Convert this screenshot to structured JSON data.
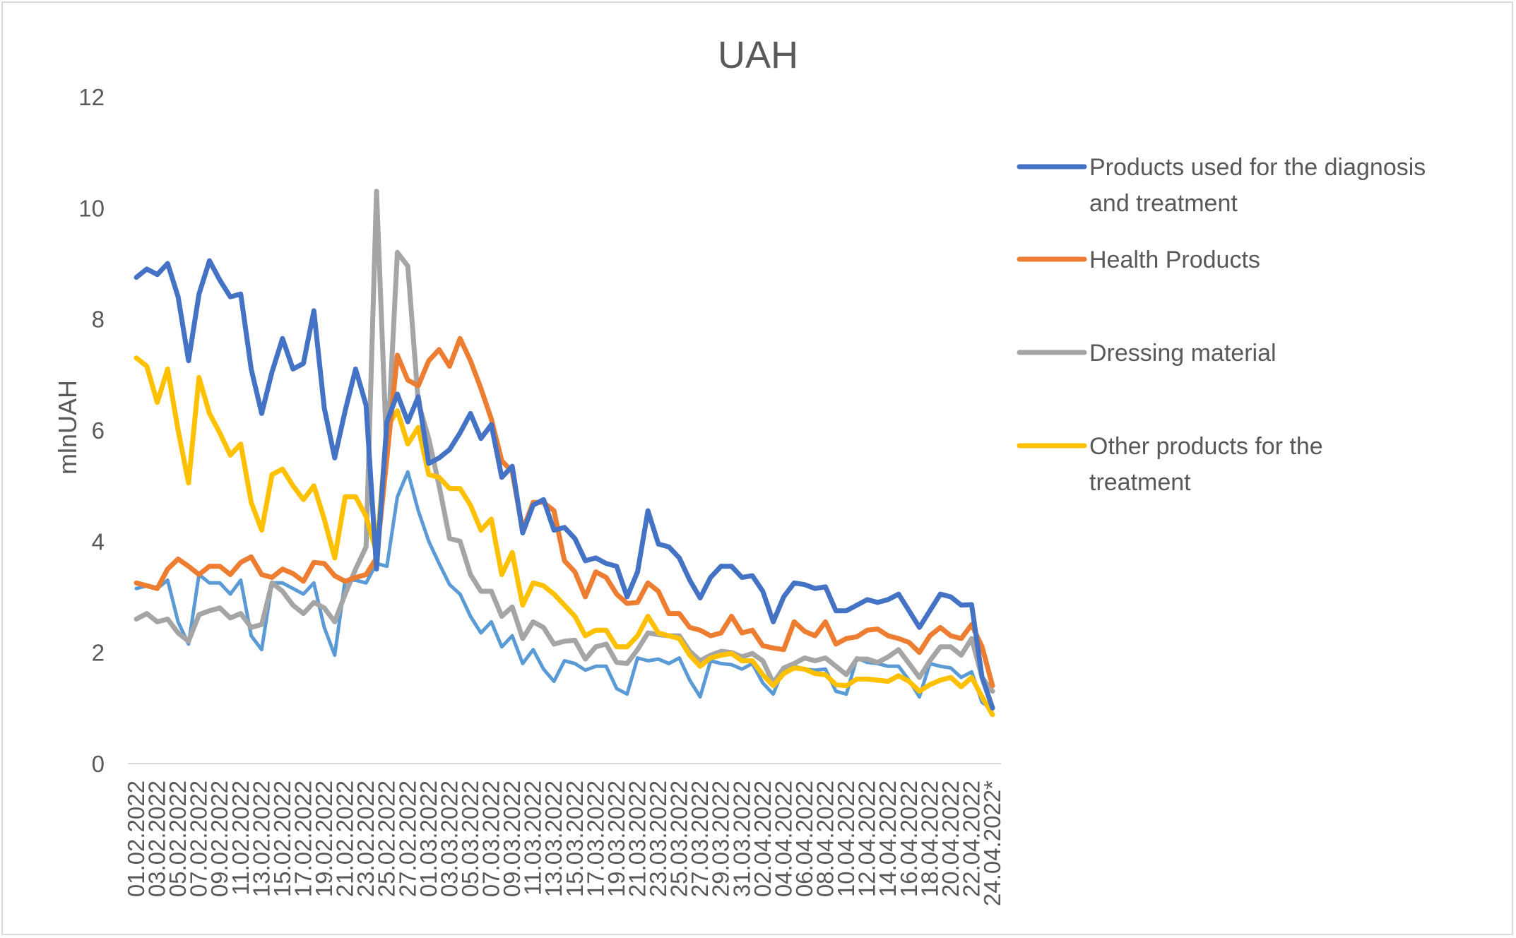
{
  "chart_data": {
    "type": "line",
    "title": "UAH",
    "xlabel": "",
    "ylabel": "mlnUAH",
    "ylim": [
      0,
      12
    ],
    "yticks": [
      "0",
      "2",
      "4",
      "6",
      "8",
      "10",
      "12"
    ],
    "grid": false,
    "legend_position": "right",
    "x_tick_labels": [
      "01.02.2022",
      "03.02.2022",
      "05.02.2022",
      "07.02.2022",
      "09.02.2022",
      "11.02.2022",
      "13.02.2022",
      "15.02.2022",
      "17.02.2022",
      "19.02.2022",
      "21.02.2022",
      "23.02.2022",
      "25.02.2022",
      "27.02.2022",
      "01.03.2022",
      "03.03.2022",
      "05.03.2022",
      "07.03.2022",
      "09.03.2022",
      "11.03.2022",
      "13.03.2022",
      "15.03.2022",
      "17.03.2022",
      "19.03.2022",
      "21.03.2022",
      "23.03.2022",
      "25.03.2022",
      "27.03.2022",
      "29.03.2022",
      "31.03.2022",
      "02.04.2022",
      "04.04.2022",
      "06.04.2022",
      "08.04.2022",
      "10.04.2022",
      "12.04.2022",
      "14.04.2022",
      "16.04.2022",
      "18.04.2022",
      "20.04.2022",
      "22.04.2022",
      "24.04.2022*"
    ],
    "series": [
      {
        "name": "Products used for the diagnosis and treatment",
        "color": "#4472C4",
        "in_legend": true,
        "values": [
          8.75,
          8.9,
          8.8,
          9.0,
          8.4,
          7.25,
          8.45,
          9.05,
          8.7,
          8.4,
          8.45,
          7.1,
          6.3,
          7.05,
          7.65,
          7.1,
          7.2,
          8.15,
          6.4,
          5.5,
          6.35,
          7.1,
          6.45,
          3.5,
          6.15,
          6.65,
          6.15,
          6.6,
          5.4,
          5.5,
          5.65,
          5.95,
          6.3,
          5.85,
          6.1,
          5.15,
          5.35,
          4.15,
          4.65,
          4.75,
          4.2,
          4.25,
          4.05,
          3.65,
          3.7,
          3.6,
          3.55,
          3.0,
          3.45,
          4.55,
          3.95,
          3.9,
          3.7,
          3.3,
          2.98,
          3.35,
          3.55,
          3.55,
          3.35,
          3.38,
          3.1,
          2.55,
          3.0,
          3.25,
          3.22,
          3.15,
          3.18,
          2.75,
          2.75,
          2.85,
          2.95,
          2.9,
          2.95,
          3.05,
          2.75,
          2.45,
          2.75,
          3.05,
          3.0,
          2.85,
          2.86,
          1.55,
          1.0
        ]
      },
      {
        "name": "Health Products",
        "color": "#ED7D31",
        "in_legend": true,
        "values": [
          3.25,
          3.2,
          3.15,
          3.5,
          3.68,
          3.55,
          3.4,
          3.55,
          3.55,
          3.4,
          3.62,
          3.72,
          3.4,
          3.35,
          3.5,
          3.42,
          3.28,
          3.62,
          3.6,
          3.38,
          3.28,
          3.35,
          3.4,
          3.7,
          5.5,
          7.35,
          6.9,
          6.8,
          7.25,
          7.45,
          7.15,
          7.65,
          7.25,
          6.75,
          6.2,
          5.45,
          5.25,
          4.2,
          4.7,
          4.7,
          4.55,
          3.65,
          3.45,
          3.0,
          3.45,
          3.35,
          3.05,
          2.88,
          2.9,
          3.25,
          3.1,
          2.7,
          2.7,
          2.45,
          2.4,
          2.3,
          2.35,
          2.65,
          2.35,
          2.4,
          2.12,
          2.08,
          2.05,
          2.55,
          2.38,
          2.3,
          2.55,
          2.15,
          2.25,
          2.28,
          2.4,
          2.42,
          2.3,
          2.25,
          2.18,
          2.0,
          2.3,
          2.45,
          2.3,
          2.25,
          2.5,
          2.1,
          1.4
        ]
      },
      {
        "name": "Dressing material",
        "color": "#A5A5A5",
        "in_legend": true,
        "values": [
          2.6,
          2.7,
          2.55,
          2.6,
          2.35,
          2.2,
          2.68,
          2.75,
          2.8,
          2.62,
          2.7,
          2.45,
          2.5,
          3.25,
          3.1,
          2.85,
          2.7,
          2.9,
          2.8,
          2.55,
          3.05,
          3.5,
          3.9,
          10.3,
          5.5,
          9.2,
          8.95,
          6.5,
          5.85,
          5.0,
          4.05,
          4.0,
          3.4,
          3.1,
          3.1,
          2.65,
          2.82,
          2.25,
          2.55,
          2.45,
          2.15,
          2.2,
          2.22,
          1.88,
          2.1,
          2.15,
          1.82,
          1.8,
          2.05,
          2.35,
          2.32,
          2.3,
          2.3,
          2.02,
          1.85,
          1.95,
          2.02,
          2.0,
          1.92,
          1.98,
          1.85,
          1.45,
          1.72,
          1.8,
          1.9,
          1.85,
          1.9,
          1.75,
          1.6,
          1.88,
          1.88,
          1.82,
          1.92,
          2.05,
          1.8,
          1.55,
          1.85,
          2.1,
          2.1,
          1.95,
          2.25,
          1.55,
          1.3
        ]
      },
      {
        "name": "Other products for the treatment",
        "color": "#FFC000",
        "in_legend": true,
        "values": [
          7.3,
          7.15,
          6.5,
          7.1,
          6.0,
          5.05,
          6.95,
          6.3,
          5.95,
          5.55,
          5.75,
          4.7,
          4.2,
          5.2,
          5.3,
          5.0,
          4.75,
          5.0,
          4.4,
          3.7,
          4.8,
          4.8,
          4.45,
          3.8,
          6.05,
          6.35,
          5.75,
          6.05,
          5.2,
          5.15,
          4.95,
          4.95,
          4.65,
          4.2,
          4.4,
          3.4,
          3.8,
          2.85,
          3.25,
          3.2,
          3.05,
          2.85,
          2.65,
          2.3,
          2.4,
          2.4,
          2.1,
          2.1,
          2.3,
          2.65,
          2.35,
          2.3,
          2.25,
          1.95,
          1.75,
          1.9,
          1.95,
          1.98,
          1.85,
          1.85,
          1.6,
          1.4,
          1.62,
          1.72,
          1.7,
          1.62,
          1.6,
          1.42,
          1.4,
          1.52,
          1.52,
          1.5,
          1.48,
          1.58,
          1.48,
          1.3,
          1.42,
          1.5,
          1.55,
          1.38,
          1.55,
          1.2,
          0.88
        ]
      },
      {
        "name": "",
        "color": "#5B9BD5",
        "in_legend": false,
        "values": [
          3.15,
          3.2,
          3.15,
          3.3,
          2.55,
          2.15,
          3.4,
          3.25,
          3.25,
          3.05,
          3.3,
          2.3,
          2.05,
          3.25,
          3.25,
          3.15,
          3.05,
          3.25,
          2.45,
          1.95,
          3.3,
          3.3,
          3.25,
          3.6,
          3.55,
          4.8,
          5.25,
          4.55,
          4.0,
          3.6,
          3.22,
          3.05,
          2.65,
          2.35,
          2.55,
          2.1,
          2.3,
          1.8,
          2.05,
          1.7,
          1.48,
          1.85,
          1.8,
          1.68,
          1.75,
          1.75,
          1.35,
          1.25,
          1.9,
          1.85,
          1.88,
          1.8,
          1.9,
          1.5,
          1.2,
          1.85,
          1.8,
          1.78,
          1.7,
          1.8,
          1.45,
          1.25,
          1.72,
          1.75,
          1.7,
          1.68,
          1.7,
          1.3,
          1.25,
          1.9,
          1.82,
          1.8,
          1.75,
          1.75,
          1.5,
          1.2,
          1.8,
          1.75,
          1.72,
          1.55,
          1.65,
          1.1,
          0.98
        ]
      }
    ]
  }
}
